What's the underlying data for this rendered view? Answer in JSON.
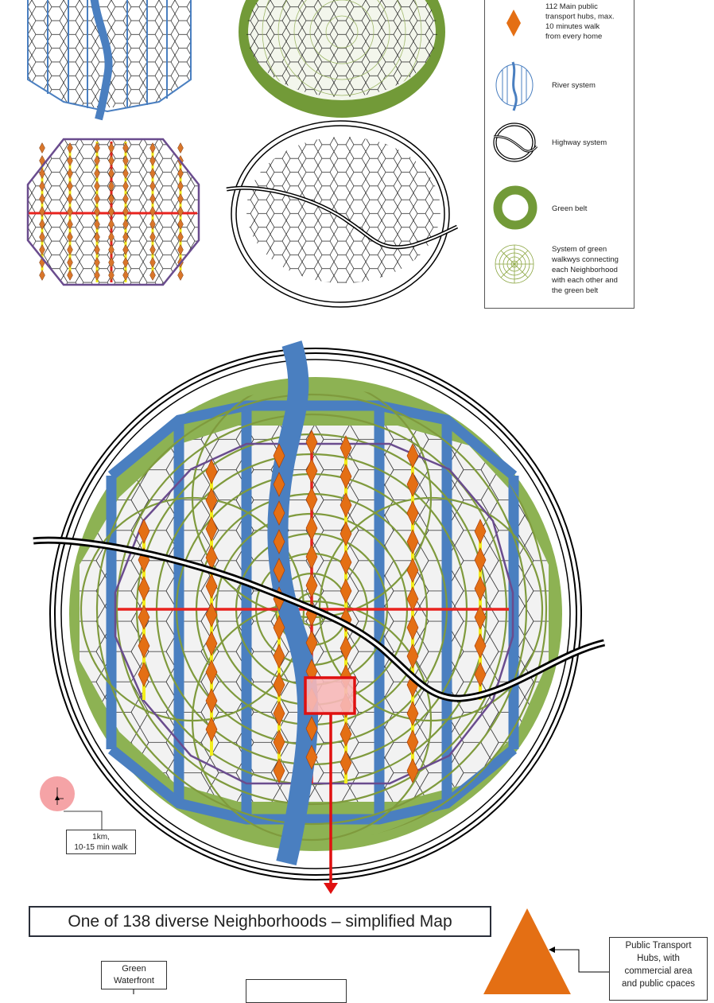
{
  "legend": {
    "hubs": [
      "112 Main public",
      "transport hubs, max.",
      "10 minutes walk",
      "from every home"
    ],
    "river": "River system",
    "highway": "Highway system",
    "greenbelt": "Green belt",
    "walkways": [
      "System of green",
      "walkwys connecting",
      "each Neighborhood",
      "with each other and",
      "the green belt"
    ]
  },
  "scale": {
    "line1": "1km,",
    "line2": "10-15 min walk"
  },
  "title": "One of 138 diverse Neighborhoods – simplified Map",
  "green_waterfront": {
    "line1": "Green",
    "line2": "Waterfront"
  },
  "hub_callout": [
    "Public Transport",
    "Hubs, with",
    "commercial area",
    "and public cpaces"
  ],
  "colors": {
    "river": "#4a7fc0",
    "green_belt": "#8db253",
    "walkway_rings": "#7f9a3d",
    "hub_fill": "#e46f14",
    "transit_line": "#f3ee1d",
    "main_axis": "#e8231e",
    "boundary": "#6a4c8e",
    "focus_marker": "#f7b8b8"
  }
}
